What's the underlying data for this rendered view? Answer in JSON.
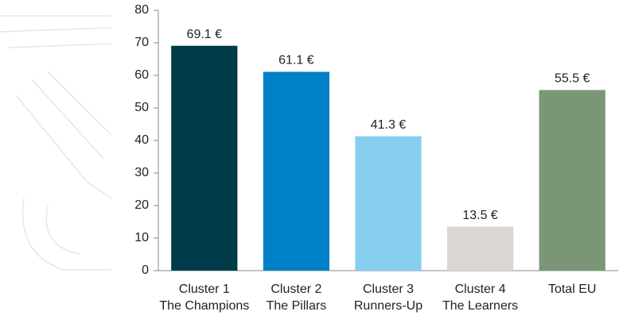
{
  "chart_data": {
    "type": "bar",
    "categories": [
      [
        "Cluster 1",
        "The Champions"
      ],
      [
        "Cluster 2",
        "The Pillars"
      ],
      [
        "Cluster 3",
        "Runners-Up"
      ],
      [
        "Cluster 4",
        "The Learners"
      ],
      [
        "Total EU"
      ]
    ],
    "values": [
      69.1,
      61.1,
      41.3,
      13.5,
      55.5
    ],
    "value_labels": [
      "69.1 €",
      "61.1 €",
      "41.3 €",
      "13.5 €",
      "55.5 €"
    ],
    "colors": [
      "#003b4a",
      "#0080c6",
      "#87cfee",
      "#d9d6d3",
      "#7a9677"
    ],
    "ylim": [
      0,
      80
    ],
    "yticks": [
      0,
      10,
      20,
      30,
      40,
      50,
      60,
      70,
      80
    ],
    "grid": false
  }
}
